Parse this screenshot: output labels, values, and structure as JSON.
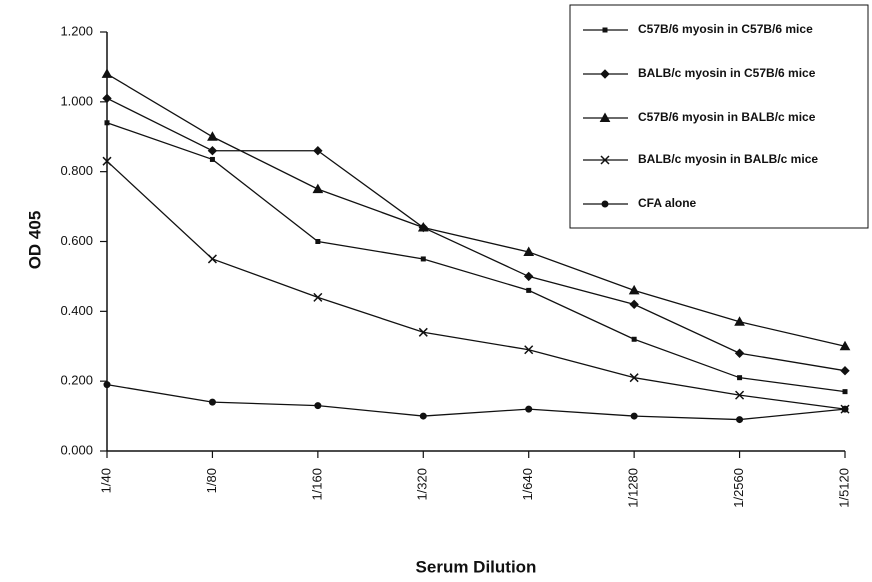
{
  "chart_data": {
    "type": "line",
    "xlabel": "Serum Dilution",
    "ylabel": "OD 405",
    "categories": [
      "1/40",
      "1/80",
      "1/160",
      "1/320",
      "1/640",
      "1/1280",
      "1/2560",
      "1/5120"
    ],
    "series": [
      {
        "name": "C57B/6 myosin in C57B/6 mice",
        "color": "#111111",
        "marker": "square",
        "values": [
          0.94,
          0.835,
          0.6,
          0.55,
          0.46,
          0.32,
          0.21,
          0.17
        ]
      },
      {
        "name": "BALB/c myosin in C57B/6 mice",
        "color": "#111111",
        "marker": "diamond",
        "values": [
          1.01,
          0.86,
          0.86,
          0.64,
          0.5,
          0.42,
          0.28,
          0.23
        ]
      },
      {
        "name": "C57B/6 myosin in BALB/c mice",
        "color": "#111111",
        "marker": "triangle",
        "values": [
          1.08,
          0.9,
          0.75,
          0.64,
          0.57,
          0.46,
          0.37,
          0.3
        ]
      },
      {
        "name": "BALB/c myosin in BALB/c mice",
        "color": "#111111",
        "marker": "x",
        "values": [
          0.83,
          0.55,
          0.44,
          0.34,
          0.29,
          0.21,
          0.16,
          0.12
        ]
      },
      {
        "name": "CFA  alone",
        "color": "#111111",
        "marker": "circle",
        "values": [
          0.19,
          0.14,
          0.13,
          0.1,
          0.12,
          0.1,
          0.09,
          0.12
        ]
      }
    ],
    "ylim": [
      0,
      1.2
    ],
    "yticks": [
      {
        "value": 0,
        "label": "0.000"
      },
      {
        "value": 0.2,
        "label": "0.200"
      },
      {
        "value": 0.4,
        "label": "0.400"
      },
      {
        "value": 0.6,
        "label": "0.600"
      },
      {
        "value": 0.8,
        "label": "0.800"
      },
      {
        "value": 1.0,
        "label": "1.000"
      },
      {
        "value": 1.2,
        "label": "1.200"
      }
    ],
    "legend": "top-right",
    "grid": false
  }
}
